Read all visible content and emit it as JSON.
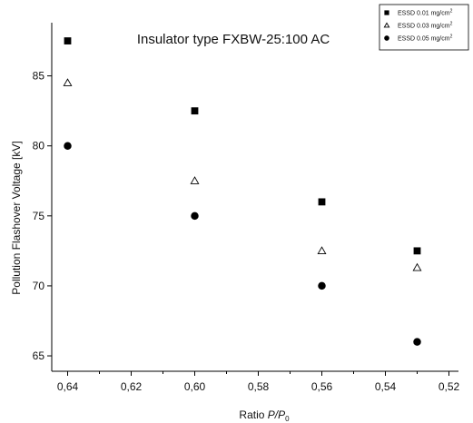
{
  "chart_data": {
    "type": "scatter",
    "title": "Insulator type FXBW-25:100 AC",
    "xlabel": {
      "prefix": "Ratio ",
      "symbol": "P/P",
      "subscript": "0"
    },
    "ylabel": "Pollution Flashover Voltage  [kV]",
    "x_axis_reversed": true,
    "xlim": [
      0.645,
      0.517
    ],
    "ylim": [
      63.9,
      88.8
    ],
    "x_ticks": [
      {
        "value": 0.64,
        "label": "0,64"
      },
      {
        "value": 0.62,
        "label": "0,62"
      },
      {
        "value": 0.6,
        "label": "0,60"
      },
      {
        "value": 0.58,
        "label": "0,58"
      },
      {
        "value": 0.56,
        "label": "0,56"
      },
      {
        "value": 0.54,
        "label": "0,54"
      },
      {
        "value": 0.52,
        "label": "0,52"
      }
    ],
    "y_ticks": [
      {
        "value": 65,
        "label": "65"
      },
      {
        "value": 70,
        "label": "70"
      },
      {
        "value": 75,
        "label": "75"
      },
      {
        "value": 80,
        "label": "80"
      },
      {
        "value": 85,
        "label": "85"
      }
    ],
    "grid": false,
    "legend_position": "top-right",
    "series": [
      {
        "name": "ESSD  0.01 mg/cm",
        "superscript": "2",
        "marker": "square",
        "filled": true,
        "x": [
          0.64,
          0.6,
          0.56,
          0.53
        ],
        "y": [
          87.5,
          82.5,
          76.0,
          72.5
        ]
      },
      {
        "name": "ESSD  0.03 mg/cm",
        "superscript": "2",
        "marker": "triangle",
        "filled": false,
        "x": [
          0.64,
          0.6,
          0.56,
          0.53
        ],
        "y": [
          84.5,
          77.5,
          72.5,
          71.3
        ]
      },
      {
        "name": "ESSD  0.05 mg/cm",
        "superscript": "2",
        "marker": "circle",
        "filled": true,
        "x": [
          0.64,
          0.6,
          0.56,
          0.53
        ],
        "y": [
          80.0,
          75.0,
          70.0,
          66.0
        ]
      }
    ]
  }
}
